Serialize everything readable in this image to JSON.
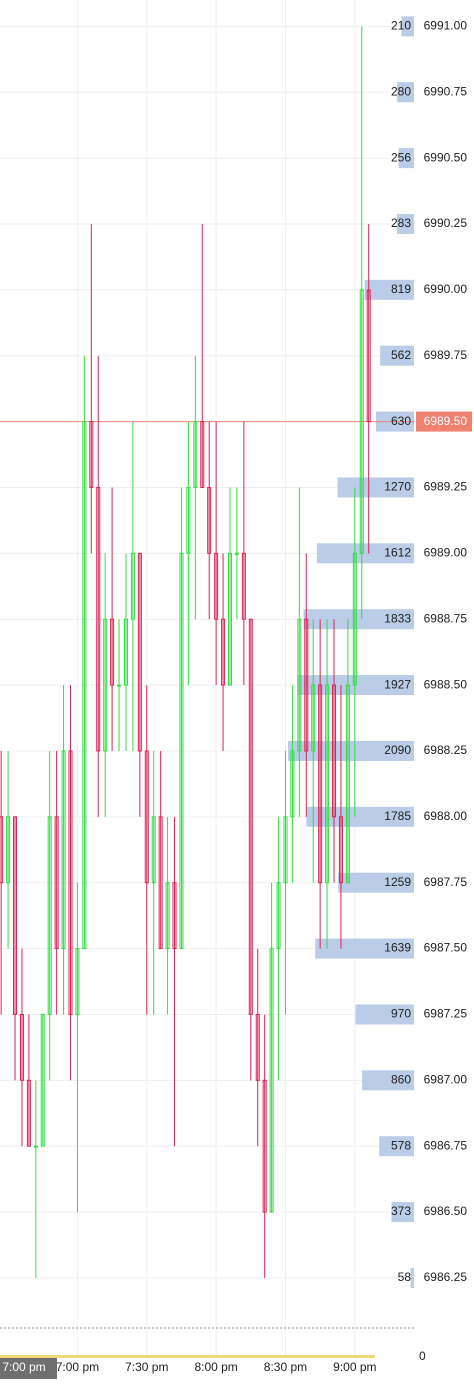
{
  "chart_data": {
    "type": "candlestick",
    "x": [
      -33,
      -30,
      -27,
      -24,
      -21,
      -18,
      -15,
      -12,
      -9,
      -6,
      -3,
      0,
      3,
      6,
      9,
      12,
      15,
      18,
      21,
      24,
      27,
      30,
      33,
      36,
      39,
      42,
      45,
      48,
      51,
      54,
      57,
      60,
      63,
      66,
      69,
      72,
      75,
      78,
      81,
      84,
      87,
      90,
      93,
      96,
      99,
      102,
      105,
      108,
      111,
      114,
      117,
      120,
      123,
      126
    ],
    "open": [
      6988,
      6987.75,
      6988,
      6987.25,
      6987,
      6986.75,
      6986.75,
      6987.25,
      6988,
      6987.5,
      6988.25,
      6987.25,
      6987.5,
      6989.5,
      6989.25,
      6988.25,
      6988.75,
      6988.5,
      6988.5,
      6988.75,
      6989,
      6988.25,
      6987.75,
      6988,
      6987.5,
      6987.75,
      6987.5,
      6989,
      6989.25,
      6989.5,
      6989.25,
      6989,
      6988.75,
      6988.5,
      6989,
      6989,
      6988.75,
      6987.25,
      6987,
      6986.5,
      6987.5,
      6987.75,
      6988,
      6988.25,
      6988.75,
      6988.25,
      6988.5,
      6987.75,
      6988.5,
      6988,
      6987.75,
      6988.5,
      6989,
      6990
    ],
    "high": [
      6988.25,
      6988.25,
      6988,
      6987.5,
      6987.25,
      6987,
      6987.25,
      6988.25,
      6988.25,
      6988.5,
      6988.5,
      6987.75,
      6989.75,
      6990.25,
      6989.75,
      6989,
      6989.25,
      6988.75,
      6989,
      6989.5,
      6989,
      6988.5,
      6988.25,
      6988.25,
      6988,
      6988,
      6989.25,
      6989.5,
      6989.75,
      6990.25,
      6989.5,
      6989.5,
      6989,
      6989.25,
      6989.25,
      6989.5,
      6988.75,
      6987.5,
      6987.25,
      6987.75,
      6988,
      6988.25,
      6988.5,
      6989.25,
      6989,
      6988.75,
      6988.75,
      6988.75,
      6988.75,
      6988.5,
      6988.75,
      6989.25,
      6991,
      6990.25
    ],
    "low": [
      6987.25,
      6987.5,
      6987,
      6986.75,
      6986.75,
      6986.25,
      6986.75,
      6987,
      6987.25,
      6987.25,
      6987,
      6986.5,
      6987.5,
      6989,
      6988,
      6988,
      6988.25,
      6988.25,
      6988.25,
      6988.25,
      6988,
      6987.25,
      6987.25,
      6987.5,
      6987.25,
      6986.75,
      6987.5,
      6988.5,
      6988.75,
      6989.25,
      6988.75,
      6988.5,
      6988.25,
      6988.5,
      6988.75,
      6988.5,
      6987,
      6986.75,
      6986.25,
      6986.5,
      6987,
      6987.25,
      6987.75,
      6988,
      6988,
      6987.75,
      6987.5,
      6987.5,
      6987.75,
      6987.5,
      6987.75,
      6988,
      6988.75,
      6989
    ],
    "close": [
      6987.75,
      6988,
      6987.25,
      6987,
      6986.75,
      6986.75,
      6987.25,
      6988,
      6987.5,
      6988.25,
      6987.25,
      6987.5,
      6989.5,
      6989.25,
      6988.25,
      6988.75,
      6988.5,
      6988.5,
      6988.75,
      6989,
      6988.25,
      6987.75,
      6988,
      6987.5,
      6987.75,
      6987.5,
      6989,
      6989.25,
      6989.5,
      6989.25,
      6989,
      6988.75,
      6988.5,
      6989,
      6989,
      6988.75,
      6987.25,
      6987,
      6986.5,
      6987.5,
      6987.75,
      6988,
      6988.25,
      6988.75,
      6988.25,
      6988.5,
      6987.75,
      6988.5,
      6988,
      6987.75,
      6988.5,
      6989,
      6990,
      6989.5
    ],
    "up_color": "#33dd44",
    "down_color": "#dd2255",
    "xlim": [
      -33.5,
      145.6
    ],
    "xticks": [
      {
        "value": 0,
        "label": "7:00 pm"
      },
      {
        "value": 30,
        "label": "7:30 pm"
      },
      {
        "value": 60,
        "label": "8:00 pm"
      },
      {
        "value": 90,
        "label": "8:30 pm"
      },
      {
        "value": 120,
        "label": "9:00 pm"
      }
    ],
    "crosshair_label": "7:00 pm",
    "ylim": [
      6986.06,
      6991.1
    ],
    "yticks": [
      {
        "value": 6991,
        "label": "6991.00"
      },
      {
        "value": 6990.75,
        "label": "6990.75"
      },
      {
        "value": 6990.5,
        "label": "6990.50"
      },
      {
        "value": 6990.25,
        "label": "6990.25"
      },
      {
        "value": 6990,
        "label": "6990.00"
      },
      {
        "value": 6989.75,
        "label": "6989.75"
      },
      {
        "value": 6989.5,
        "label": "6989.50"
      },
      {
        "value": 6989.25,
        "label": "6989.25"
      },
      {
        "value": 6989,
        "label": "6989.00"
      },
      {
        "value": 6988.75,
        "label": "6988.75"
      },
      {
        "value": 6988.5,
        "label": "6988.50"
      },
      {
        "value": 6988.25,
        "label": "6988.25"
      },
      {
        "value": 6988,
        "label": "6988.00"
      },
      {
        "value": 6987.75,
        "label": "6987.75"
      },
      {
        "value": 6987.5,
        "label": "6987.50"
      },
      {
        "value": 6987.25,
        "label": "6987.25"
      },
      {
        "value": 6987,
        "label": "6987.00"
      },
      {
        "value": 6986.75,
        "label": "6986.75"
      },
      {
        "value": 6986.5,
        "label": "6986.50"
      },
      {
        "value": 6986.25,
        "label": "6986.25"
      }
    ],
    "profile": {
      "values": [
        210,
        280,
        256,
        283,
        819,
        562,
        630,
        1270,
        1612,
        1833,
        1927,
        2090,
        1785,
        1259,
        1639,
        970,
        860,
        578,
        373,
        58
      ],
      "color": "#b3c6e6",
      "xlim": [
        0,
        6870
      ]
    },
    "last_price": {
      "value": 6989.5,
      "label": "6989.50"
    },
    "last_price_color": "#f08070",
    "grid": true,
    "volume_yticks": [
      0
    ]
  }
}
